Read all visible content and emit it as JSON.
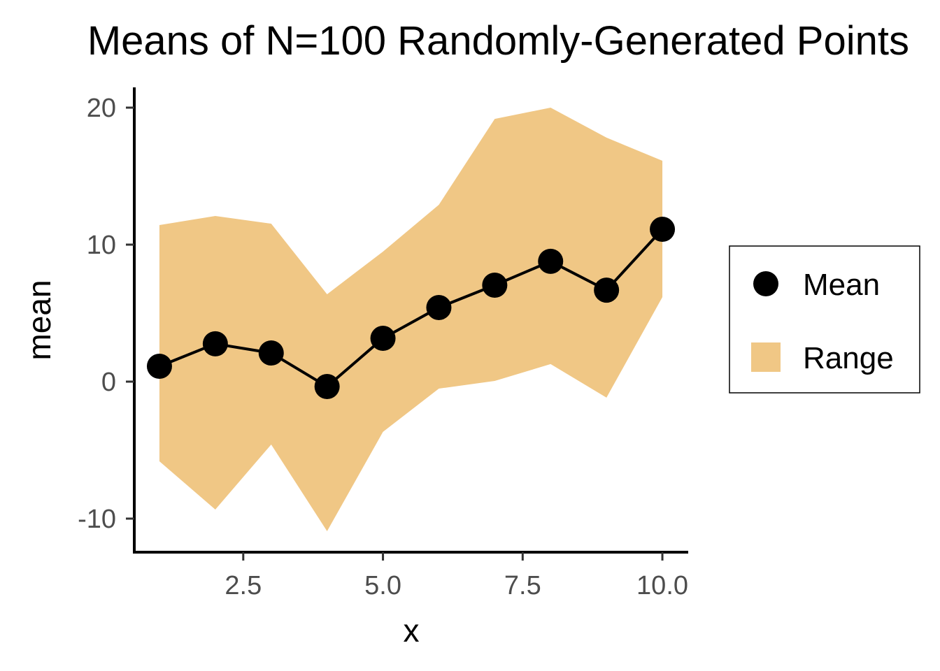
{
  "chart_data": {
    "type": "line",
    "title": "Means of N=100 Randomly-Generated Points",
    "xlabel": "x",
    "ylabel": "mean",
    "xlim": [
      0.55,
      10.45
    ],
    "ylim": [
      -12.45,
      21.48
    ],
    "xticks": [
      2.5,
      5.0,
      7.5,
      10.0
    ],
    "xtick_labels": [
      "2.5",
      "5.0",
      "7.5",
      "10.0"
    ],
    "yticks": [
      -10,
      0,
      10,
      20
    ],
    "ytick_labels": [
      "-10",
      "0",
      "10",
      "20"
    ],
    "grid": false,
    "legend_position": "right",
    "x": [
      1,
      2,
      3,
      4,
      5,
      6,
      7,
      8,
      9,
      10
    ],
    "series": [
      {
        "name": "Mean",
        "type": "line+points",
        "color": "#000000",
        "values": [
          1.12,
          2.76,
          2.09,
          -0.36,
          3.16,
          5.41,
          7.04,
          8.78,
          6.68,
          11.12
        ]
      },
      {
        "name": "Range",
        "type": "ribbon",
        "color": "#F0C785",
        "upper": [
          11.43,
          12.09,
          11.53,
          6.38,
          9.49,
          12.91,
          19.18,
          20.0,
          17.81,
          16.12
        ],
        "lower": [
          -5.82,
          -9.34,
          -4.59,
          -10.92,
          -3.67,
          -0.51,
          0.05,
          1.28,
          -1.17,
          6.17
        ]
      }
    ],
    "legend": [
      "Mean",
      "Range"
    ]
  }
}
